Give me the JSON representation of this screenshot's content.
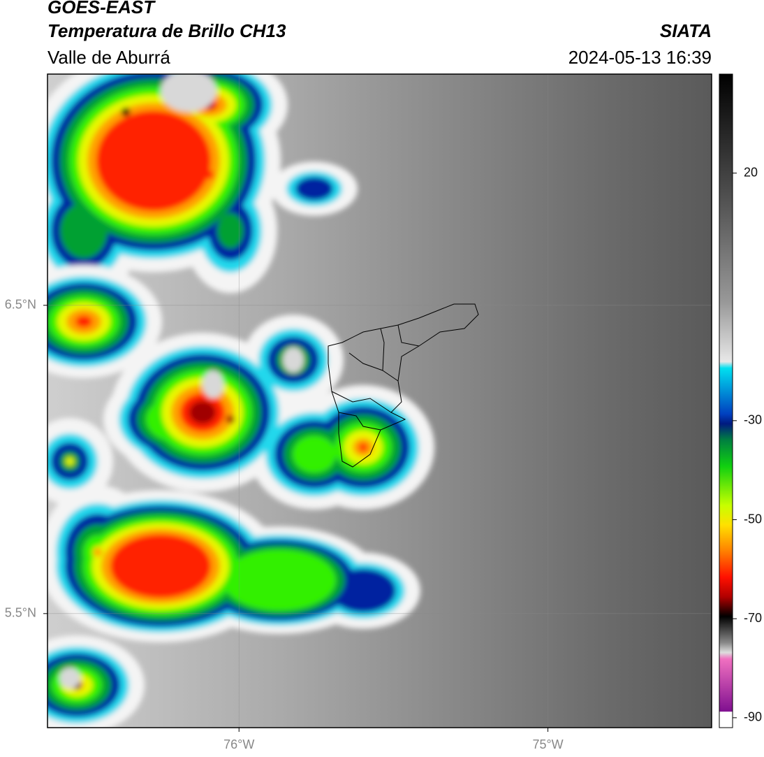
{
  "header": {
    "title": "GOES-EAST",
    "subtitle": "Temperatura de Brillo CH13",
    "source": "SIATA",
    "region": "Valle de Aburrá",
    "datetime": "2024-05-13 16:39"
  },
  "map": {
    "lon_range": [
      -76.62,
      -74.47
    ],
    "lat_range": [
      5.13,
      7.25
    ],
    "lat_ticks": [
      {
        "value": 6.5,
        "label": "6.5°N"
      },
      {
        "value": 5.5,
        "label": "5.5°N"
      }
    ],
    "lon_ticks": [
      {
        "value": -76,
        "label": "76°W"
      },
      {
        "value": -75,
        "label": "75°W"
      }
    ],
    "grid": true
  },
  "colorbar": {
    "range": [
      -92,
      40
    ],
    "ticks": [
      20,
      -30,
      -50,
      -70,
      -90
    ]
  }
}
